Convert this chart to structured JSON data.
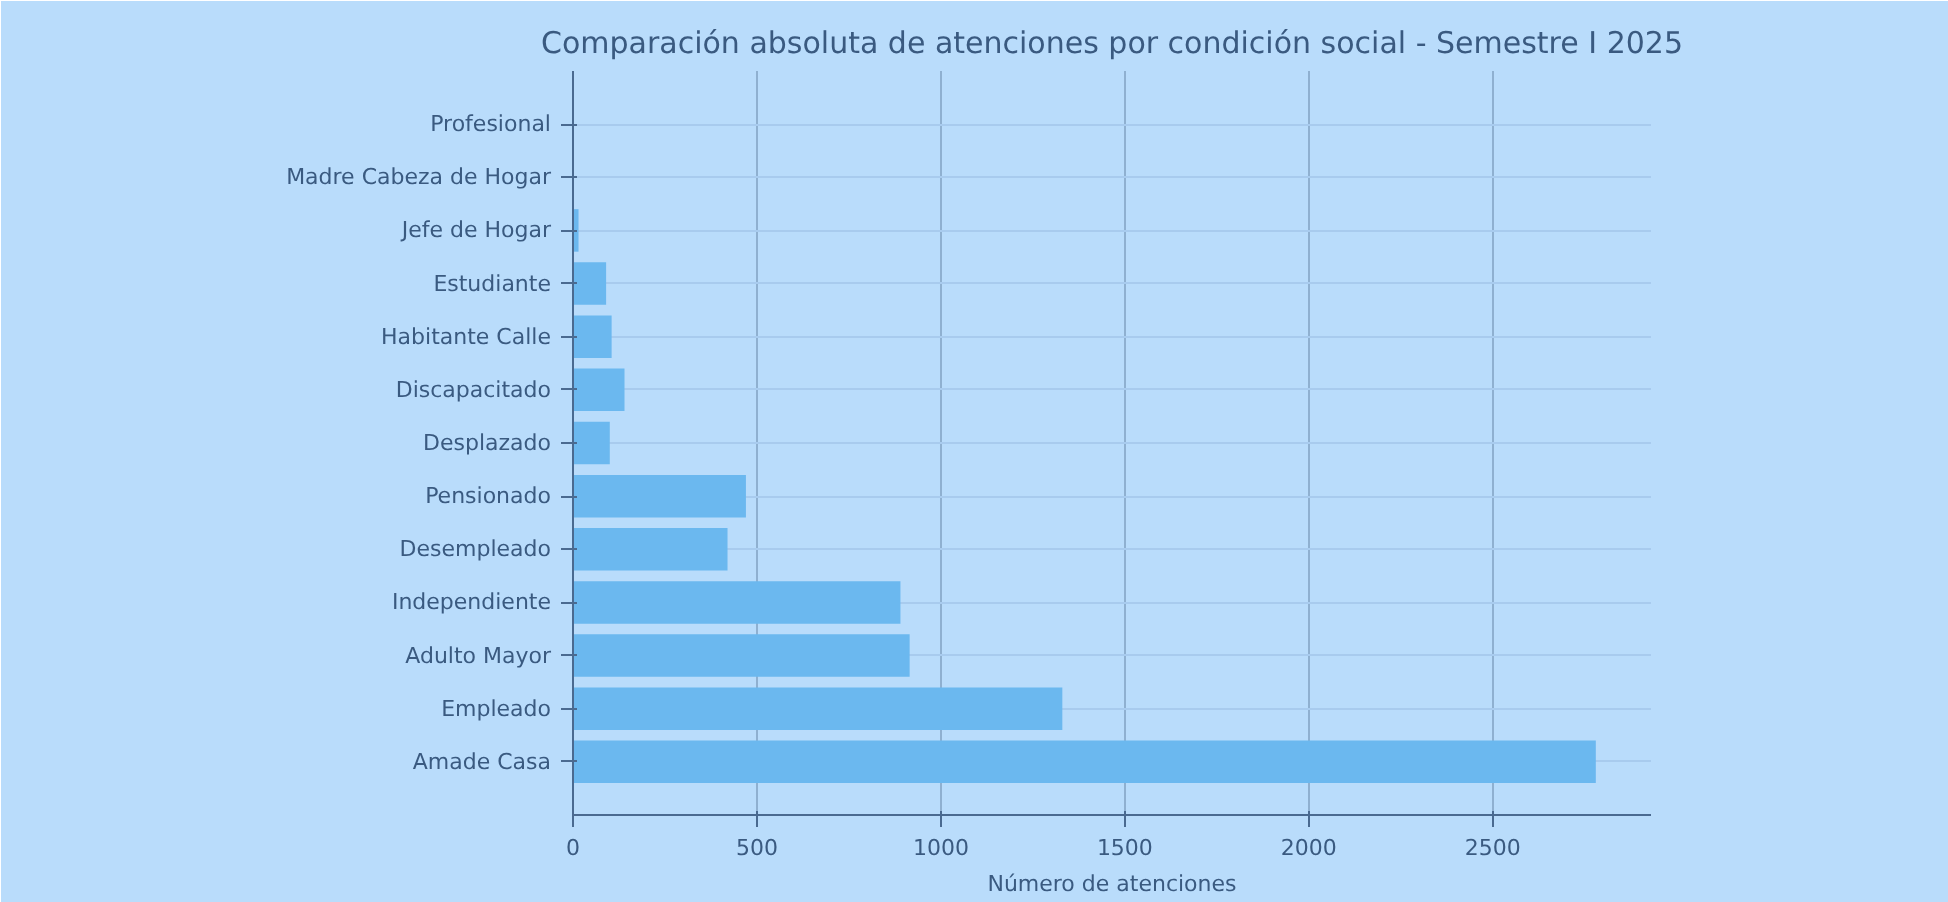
{
  "chart_data": {
    "type": "bar",
    "orientation": "horizontal",
    "title": "Comparación absoluta de atenciones por condición social - Semestre I 2025",
    "xlabel": "Número de atenciones",
    "categories": [
      "Profesional",
      "Madre Cabeza de Hogar",
      "Jefe de Hogar",
      "Estudiante",
      "Habitante Calle",
      "Discapacitado",
      "Desplazado",
      "Pensionado",
      "Desempleado",
      "Independiente",
      "Adulto Mayor",
      "Empleado",
      "Amade Casa"
    ],
    "values": [
      null,
      null,
      15,
      90,
      105,
      140,
      100,
      470,
      420,
      890,
      915,
      1330,
      2780
    ],
    "color": "#6bb8ef",
    "xlim": [
      0,
      2930
    ],
    "xticks": [
      0,
      500,
      1000,
      1500,
      2000,
      2500
    ],
    "grid": true
  }
}
